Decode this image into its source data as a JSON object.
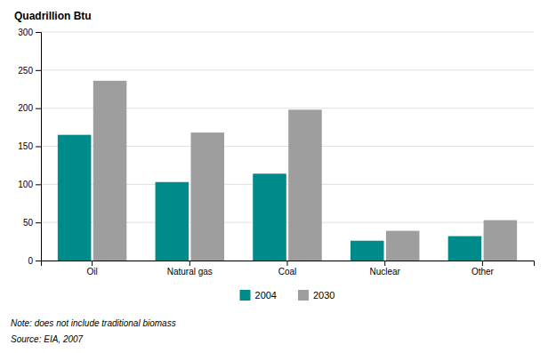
{
  "chart_data": {
    "type": "bar",
    "title": "Quadrillion Btu",
    "categories": [
      "Oil",
      "Natural gas",
      "Coal",
      "Nuclear",
      "Other"
    ],
    "series": [
      {
        "name": "2004",
        "color": "#008B8B",
        "values": [
          165,
          103,
          114,
          26,
          32
        ]
      },
      {
        "name": "2030",
        "color": "#9E9E9E",
        "values": [
          236,
          168,
          198,
          39,
          53
        ]
      }
    ],
    "ylim": [
      0,
      300
    ],
    "yticks": [
      0,
      50,
      100,
      150,
      200,
      250,
      300
    ],
    "grid": true,
    "legend": "bottom",
    "annotations": [
      "Note: does not include traditional biomass",
      "Source: EIA, 2007"
    ]
  }
}
